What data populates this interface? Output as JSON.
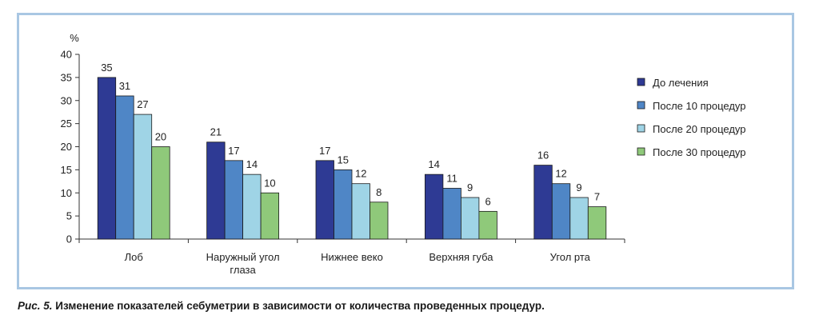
{
  "chart_data": {
    "type": "bar",
    "ylabel": "%",
    "ylim": [
      0,
      40
    ],
    "yticks": [
      0,
      5,
      10,
      15,
      20,
      25,
      30,
      35,
      40
    ],
    "categories": [
      "Лоб",
      "Наружный угол глаза",
      "Нижнее веко",
      "Верхняя губа",
      "Угол рта"
    ],
    "category_lines": [
      [
        "Лоб"
      ],
      [
        "Наружный угол",
        "глаза"
      ],
      [
        "Нижнее веко"
      ],
      [
        "Верхняя губа"
      ],
      [
        "Угол рта"
      ]
    ],
    "series": [
      {
        "name": "До лечения",
        "color": "#2e3a94",
        "values": [
          35,
          21,
          17,
          14,
          16
        ]
      },
      {
        "name": "После 10 процедур",
        "color": "#4f86c6",
        "values": [
          31,
          17,
          15,
          11,
          12
        ]
      },
      {
        "name": "После 20 процедур",
        "color": "#9fd4e6",
        "values": [
          27,
          14,
          12,
          9,
          9
        ]
      },
      {
        "name": "После 30 процедур",
        "color": "#8fc97a",
        "values": [
          20,
          10,
          8,
          6,
          7
        ]
      }
    ],
    "legend": "right",
    "grid": false
  },
  "caption": {
    "figure": "Рис. 5.",
    "text": "Изменение показателей себуметрии в зависимости от количества проведенных процедур."
  }
}
